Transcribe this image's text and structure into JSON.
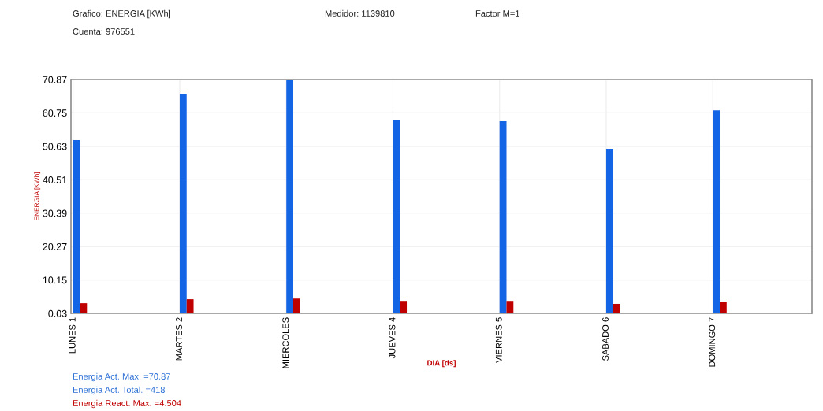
{
  "chart_data": {
    "type": "bar",
    "annotations": [
      "Grafico: ENERGIA [KWh]",
      "Medidor: 1139810",
      "Factor M=1",
      "Cuenta: 976551",
      "Energia Act. Max. =70.87",
      "Energia Act. Total. =418",
      "Energia React. Max. =4.504"
    ],
    "xlabel": "DIA [ds]",
    "ylabel": "ENERGIA [KWh]",
    "categories": [
      "LUNES 1",
      "MARTES 2",
      "MIERCOLES",
      "JUEVES 4",
      "VIERNES 5",
      "SABADO 6",
      "DOMINGO 7"
    ],
    "series": [
      {
        "color": "#1464e6",
        "values": [
          52.5,
          66.5,
          70.87,
          58.7,
          58.2,
          49.9,
          61.5
        ]
      },
      {
        "color": "#c00000",
        "values": [
          3.1,
          4.3,
          4.504,
          3.8,
          3.8,
          2.9,
          3.6
        ]
      }
    ],
    "ylim": [
      0.03,
      70.87
    ],
    "yticks": [
      0.03,
      10.15,
      20.27,
      30.39,
      40.51,
      50.63,
      60.75,
      70.87
    ],
    "grid": true
  }
}
